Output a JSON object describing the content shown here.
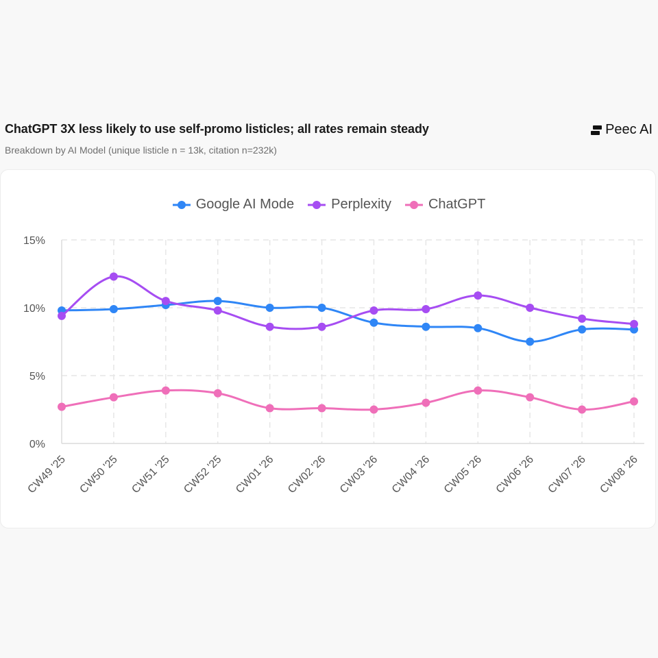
{
  "header": {
    "title": "ChatGPT 3X less likely to use self-promo listicles; all rates remain steady",
    "subtitle": "Breakdown by AI Model (unique listicle n = 13k, citation n=232k)",
    "brand": "Peec AI"
  },
  "chart_data": {
    "type": "line",
    "categories": [
      "CW49 '25",
      "CW50 '25",
      "CW51 '25",
      "CW52 '25",
      "CW01 '26",
      "CW02 '26",
      "CW03 '26",
      "CW04 '26",
      "CW05 '26",
      "CW06 '26",
      "CW07 '26",
      "CW08 '26"
    ],
    "series": [
      {
        "name": "Google AI Mode",
        "color": "#2f86f6",
        "values": [
          9.8,
          9.9,
          10.2,
          10.5,
          10.0,
          10.0,
          8.9,
          8.6,
          8.5,
          7.5,
          8.4,
          8.4
        ]
      },
      {
        "name": "Perplexity",
        "color": "#a64df2",
        "values": [
          9.4,
          12.3,
          10.5,
          9.8,
          8.6,
          8.6,
          9.8,
          9.9,
          10.9,
          10.0,
          9.2,
          8.8
        ]
      },
      {
        "name": "ChatGPT",
        "color": "#ef6fb9",
        "values": [
          2.7,
          3.4,
          3.9,
          3.7,
          2.6,
          2.6,
          2.5,
          3.0,
          3.9,
          3.4,
          2.5,
          3.1
        ]
      }
    ],
    "y_ticks": [
      "0%",
      "5%",
      "10%",
      "15%"
    ],
    "ylim": [
      0,
      15
    ],
    "grid": true,
    "legend_position": "top-center"
  }
}
